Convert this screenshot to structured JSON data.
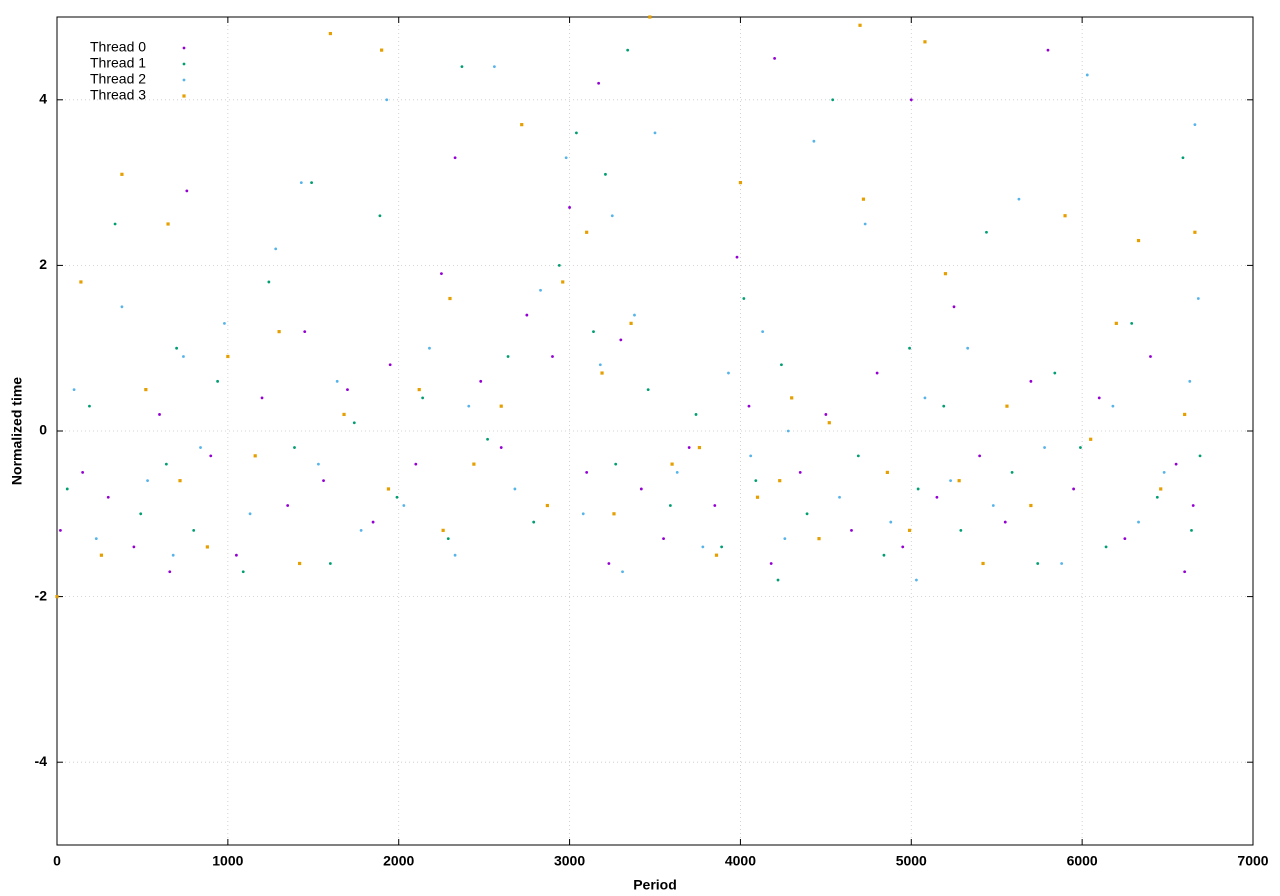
{
  "chart_data": {
    "type": "scatter",
    "xlabel": "Period",
    "ylabel": "Normalized time",
    "xlim": [
      0,
      7000
    ],
    "ylim": [
      -5,
      5
    ],
    "xticks": [
      0,
      1000,
      2000,
      3000,
      4000,
      5000,
      6000,
      7000
    ],
    "yticks": [
      -4,
      -2,
      0,
      2,
      4
    ],
    "grid": true,
    "legend": "top-left",
    "series": [
      {
        "name": "Thread 0",
        "color": "#9400d3",
        "marker": "dot",
        "x": [
          20,
          150,
          300,
          450,
          600,
          660,
          760,
          900,
          1050,
          1200,
          1350,
          1450,
          1560,
          1700,
          1850,
          1950,
          2100,
          2250,
          2330,
          2480,
          2600,
          2750,
          2900,
          3000,
          3100,
          3170,
          3230,
          3300,
          3420,
          3550,
          3700,
          3850,
          3980,
          4050,
          4180,
          4200,
          4350,
          4500,
          4650,
          4800,
          4950,
          5000,
          5150,
          5250,
          5400,
          5550,
          5700,
          5800,
          5950,
          6100,
          6250,
          6400,
          6550,
          6600,
          6650
        ],
        "values": [
          -1.2,
          -0.5,
          -0.8,
          -1.4,
          0.2,
          -1.7,
          2.9,
          -0.3,
          -1.5,
          0.4,
          -0.9,
          1.2,
          -0.6,
          0.5,
          -1.1,
          0.8,
          -0.4,
          1.9,
          3.3,
          0.6,
          -0.2,
          1.4,
          0.9,
          2.7,
          -0.5,
          4.2,
          -1.6,
          1.1,
          -0.7,
          -1.3,
          -0.2,
          -0.9,
          2.1,
          0.3,
          -1.6,
          4.5,
          -0.5,
          0.2,
          -1.2,
          0.7,
          -1.4,
          4.0,
          -0.8,
          1.5,
          -0.3,
          -1.1,
          0.6,
          4.6,
          -0.7,
          0.4,
          -1.3,
          0.9,
          -0.4,
          -1.7,
          -0.9
        ]
      },
      {
        "name": "Thread 1",
        "color": "#009e73",
        "marker": "dot",
        "x": [
          60,
          190,
          340,
          490,
          640,
          700,
          800,
          940,
          1090,
          1240,
          1390,
          1490,
          1600,
          1740,
          1890,
          1990,
          2140,
          2290,
          2370,
          2520,
          2640,
          2790,
          2940,
          3040,
          3140,
          3210,
          3270,
          3340,
          3460,
          3590,
          3740,
          3890,
          4020,
          4090,
          4220,
          4240,
          4390,
          4540,
          4690,
          4840,
          4990,
          5040,
          5190,
          5290,
          5440,
          5590,
          5740,
          5840,
          5990,
          6140,
          6290,
          6440,
          6590,
          6640,
          6690
        ],
        "values": [
          -0.7,
          0.3,
          2.5,
          -1.0,
          -0.4,
          1.0,
          -1.2,
          0.6,
          -1.7,
          1.8,
          -0.2,
          3.0,
          -1.6,
          0.1,
          2.6,
          -0.8,
          0.4,
          -1.3,
          4.4,
          -0.1,
          0.9,
          -1.1,
          2.0,
          3.6,
          1.2,
          3.1,
          -0.4,
          4.6,
          0.5,
          -0.9,
          0.2,
          -1.4,
          1.6,
          -0.6,
          -1.8,
          0.8,
          -1.0,
          4.0,
          -0.3,
          -1.5,
          1.0,
          -0.7,
          0.3,
          -1.2,
          2.4,
          -0.5,
          -1.6,
          0.7,
          -0.2,
          -1.4,
          1.3,
          -0.8,
          3.3,
          -1.2,
          -0.3
        ]
      },
      {
        "name": "Thread 2",
        "color": "#56b4e9",
        "marker": "dot",
        "x": [
          100,
          230,
          380,
          530,
          680,
          740,
          840,
          980,
          1130,
          1280,
          1430,
          1530,
          1640,
          1780,
          1930,
          2030,
          2180,
          2330,
          2410,
          2560,
          2680,
          2830,
          2980,
          3080,
          3180,
          3250,
          3310,
          3380,
          3500,
          3630,
          3780,
          3930,
          4060,
          4130,
          4260,
          4280,
          4430,
          4580,
          4730,
          4880,
          5030,
          5080,
          5230,
          5330,
          5480,
          5630,
          5780,
          5880,
          6030,
          6180,
          6330,
          6480,
          6630,
          6660,
          6680
        ],
        "values": [
          0.5,
          -1.3,
          1.5,
          -0.6,
          -1.5,
          0.9,
          -0.2,
          1.3,
          -1.0,
          2.2,
          3.0,
          -0.4,
          0.6,
          -1.2,
          4.0,
          -0.9,
          1.0,
          -1.5,
          0.3,
          4.4,
          -0.7,
          1.7,
          3.3,
          -1.0,
          0.8,
          2.6,
          -1.7,
          1.4,
          3.6,
          -0.5,
          -1.4,
          0.7,
          -0.3,
          1.2,
          -1.3,
          0.0,
          3.5,
          -0.8,
          2.5,
          -1.1,
          -1.8,
          0.4,
          -0.6,
          1.0,
          -0.9,
          2.8,
          -0.2,
          -1.6,
          4.3,
          0.3,
          -1.1,
          -0.5,
          0.6,
          3.7,
          1.6
        ]
      },
      {
        "name": "Thread 3",
        "color": "#e69f00",
        "marker": "square",
        "x": [
          0,
          140,
          260,
          380,
          520,
          650,
          720,
          880,
          1000,
          1160,
          1300,
          1420,
          1600,
          1680,
          1900,
          1940,
          2120,
          2260,
          2300,
          2440,
          2600,
          2720,
          2870,
          2960,
          3100,
          3190,
          3260,
          3360,
          3470,
          3600,
          3760,
          3860,
          4000,
          4100,
          4230,
          4300,
          4460,
          4520,
          4700,
          4720,
          4860,
          4990,
          5080,
          5200,
          5280,
          5420,
          5560,
          5700,
          5900,
          6050,
          6200,
          6330,
          6460,
          6600,
          6660
        ],
        "values": [
          -2.0,
          1.8,
          -1.5,
          3.1,
          0.5,
          2.5,
          -0.6,
          -1.4,
          0.9,
          -0.3,
          1.2,
          -1.6,
          4.8,
          0.2,
          4.6,
          -0.7,
          0.5,
          -1.2,
          1.6,
          -0.4,
          0.3,
          3.7,
          -0.9,
          1.8,
          2.4,
          0.7,
          -1.0,
          1.3,
          5.0,
          -0.4,
          -0.2,
          -1.5,
          3.0,
          -0.8,
          -0.6,
          0.4,
          -1.3,
          0.1,
          4.9,
          2.8,
          -0.5,
          -1.2,
          4.7,
          1.9,
          -0.6,
          -1.6,
          0.3,
          -0.9,
          2.6,
          -0.1,
          1.3,
          2.3,
          -0.7,
          0.2,
          2.4
        ]
      }
    ]
  }
}
